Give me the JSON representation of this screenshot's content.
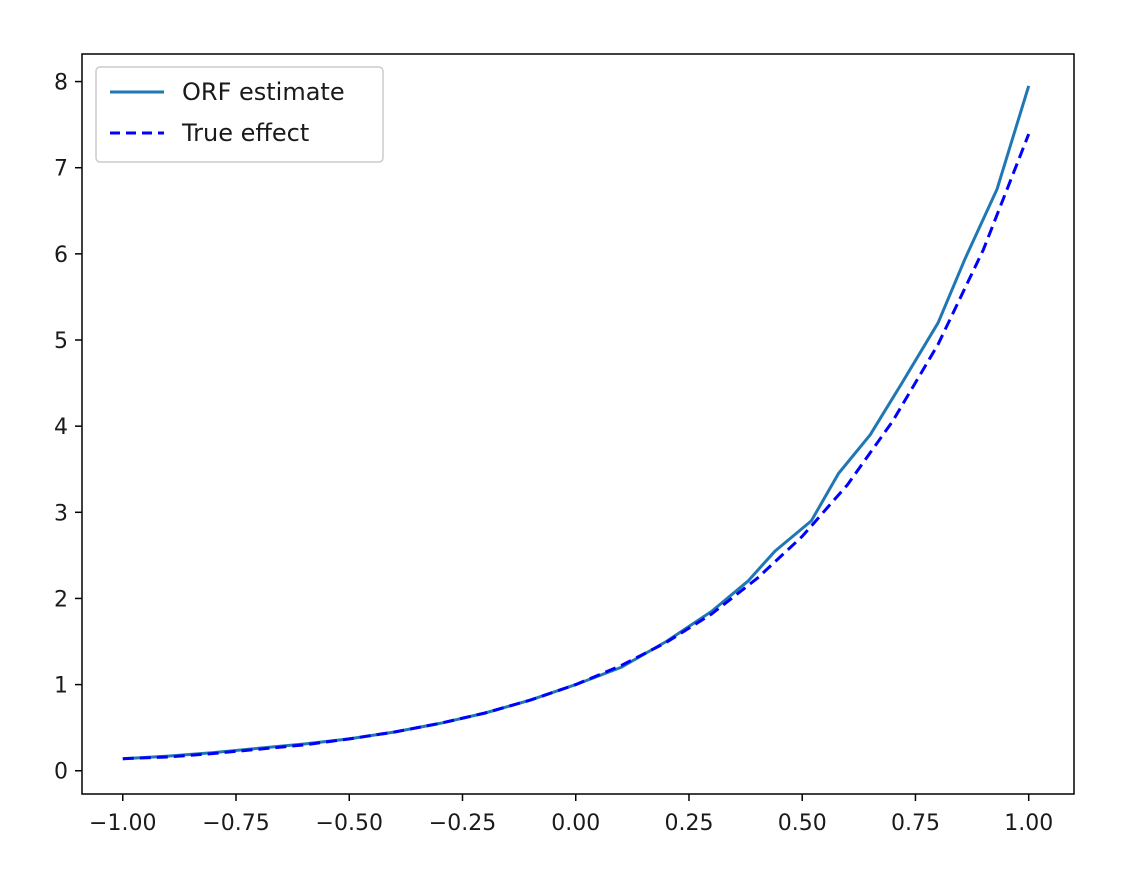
{
  "chart_data": {
    "type": "line",
    "title": "",
    "xlabel": "",
    "ylabel": "",
    "xlim": [
      -1.09,
      1.1
    ],
    "ylim": [
      -0.27,
      8.32
    ],
    "grid": false,
    "legend_placement": "upper-left",
    "xticks": [
      -1.0,
      -0.75,
      -0.5,
      -0.25,
      0.0,
      0.25,
      0.5,
      0.75,
      1.0
    ],
    "xtick_labels": [
      "−1.00",
      "−0.75",
      "−0.50",
      "−0.25",
      "0.00",
      "0.25",
      "0.50",
      "0.75",
      "1.00"
    ],
    "yticks": [
      0,
      1,
      2,
      3,
      4,
      5,
      6,
      7,
      8
    ],
    "ytick_labels": [
      "0",
      "1",
      "2",
      "3",
      "4",
      "5",
      "6",
      "7",
      "8"
    ],
    "series": [
      {
        "name": "ORF estimate",
        "style": "solid",
        "color": "#1f77b4",
        "x": [
          -1.0,
          -0.9,
          -0.8,
          -0.7,
          -0.6,
          -0.5,
          -0.4,
          -0.3,
          -0.2,
          -0.1,
          0.0,
          0.1,
          0.2,
          0.3,
          0.38,
          0.44,
          0.52,
          0.58,
          0.65,
          0.72,
          0.8,
          0.86,
          0.93,
          1.0
        ],
        "y": [
          0.14,
          0.17,
          0.21,
          0.26,
          0.31,
          0.37,
          0.45,
          0.55,
          0.67,
          0.82,
          1.0,
          1.2,
          1.5,
          1.85,
          2.2,
          2.55,
          2.9,
          3.45,
          3.9,
          4.5,
          5.2,
          5.95,
          6.75,
          7.95
        ]
      },
      {
        "name": "True effect",
        "style": "dashed",
        "color": "#0000ff",
        "x": [
          -1.0,
          -0.9,
          -0.8,
          -0.7,
          -0.6,
          -0.5,
          -0.4,
          -0.3,
          -0.2,
          -0.1,
          0.0,
          0.1,
          0.2,
          0.3,
          0.4,
          0.5,
          0.6,
          0.7,
          0.8,
          0.9,
          1.0
        ],
        "y": [
          0.14,
          0.16,
          0.2,
          0.25,
          0.3,
          0.37,
          0.45,
          0.55,
          0.67,
          0.82,
          1.0,
          1.22,
          1.49,
          1.82,
          2.23,
          2.72,
          3.32,
          4.06,
          4.95,
          6.05,
          7.39
        ]
      }
    ],
    "legend": {
      "entries": [
        {
          "label": "ORF estimate",
          "style": "solid",
          "color": "#1f77b4"
        },
        {
          "label": "True effect",
          "style": "dashed",
          "color": "#0000ff"
        }
      ]
    }
  }
}
